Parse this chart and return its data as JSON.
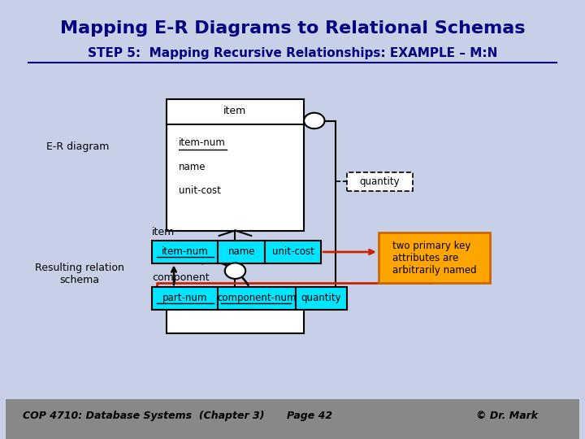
{
  "title": "Mapping E-R Diagrams to Relational Schemas",
  "subtitle": "STEP 5:  Mapping Recursive Relationships: EXAMPLE – M:N",
  "bg_color": "#c8d0e8",
  "title_color": "#000080",
  "subtitle_color": "#000080",
  "footer_text": "COP 4710: Database Systems  (Chapter 3)",
  "footer_page": "Page 42",
  "footer_copy": "© Dr. Mark",
  "er_label": "E-R diagram",
  "rel_label": "Resulting relation\nschema",
  "quantity_label": "quantity",
  "note_text": "two primary key\nattributes are\narbitrarily named",
  "note_bg": "#ffa500",
  "cyan_color": "#00e5ff",
  "item_rel_label": "item",
  "component_label": "component"
}
